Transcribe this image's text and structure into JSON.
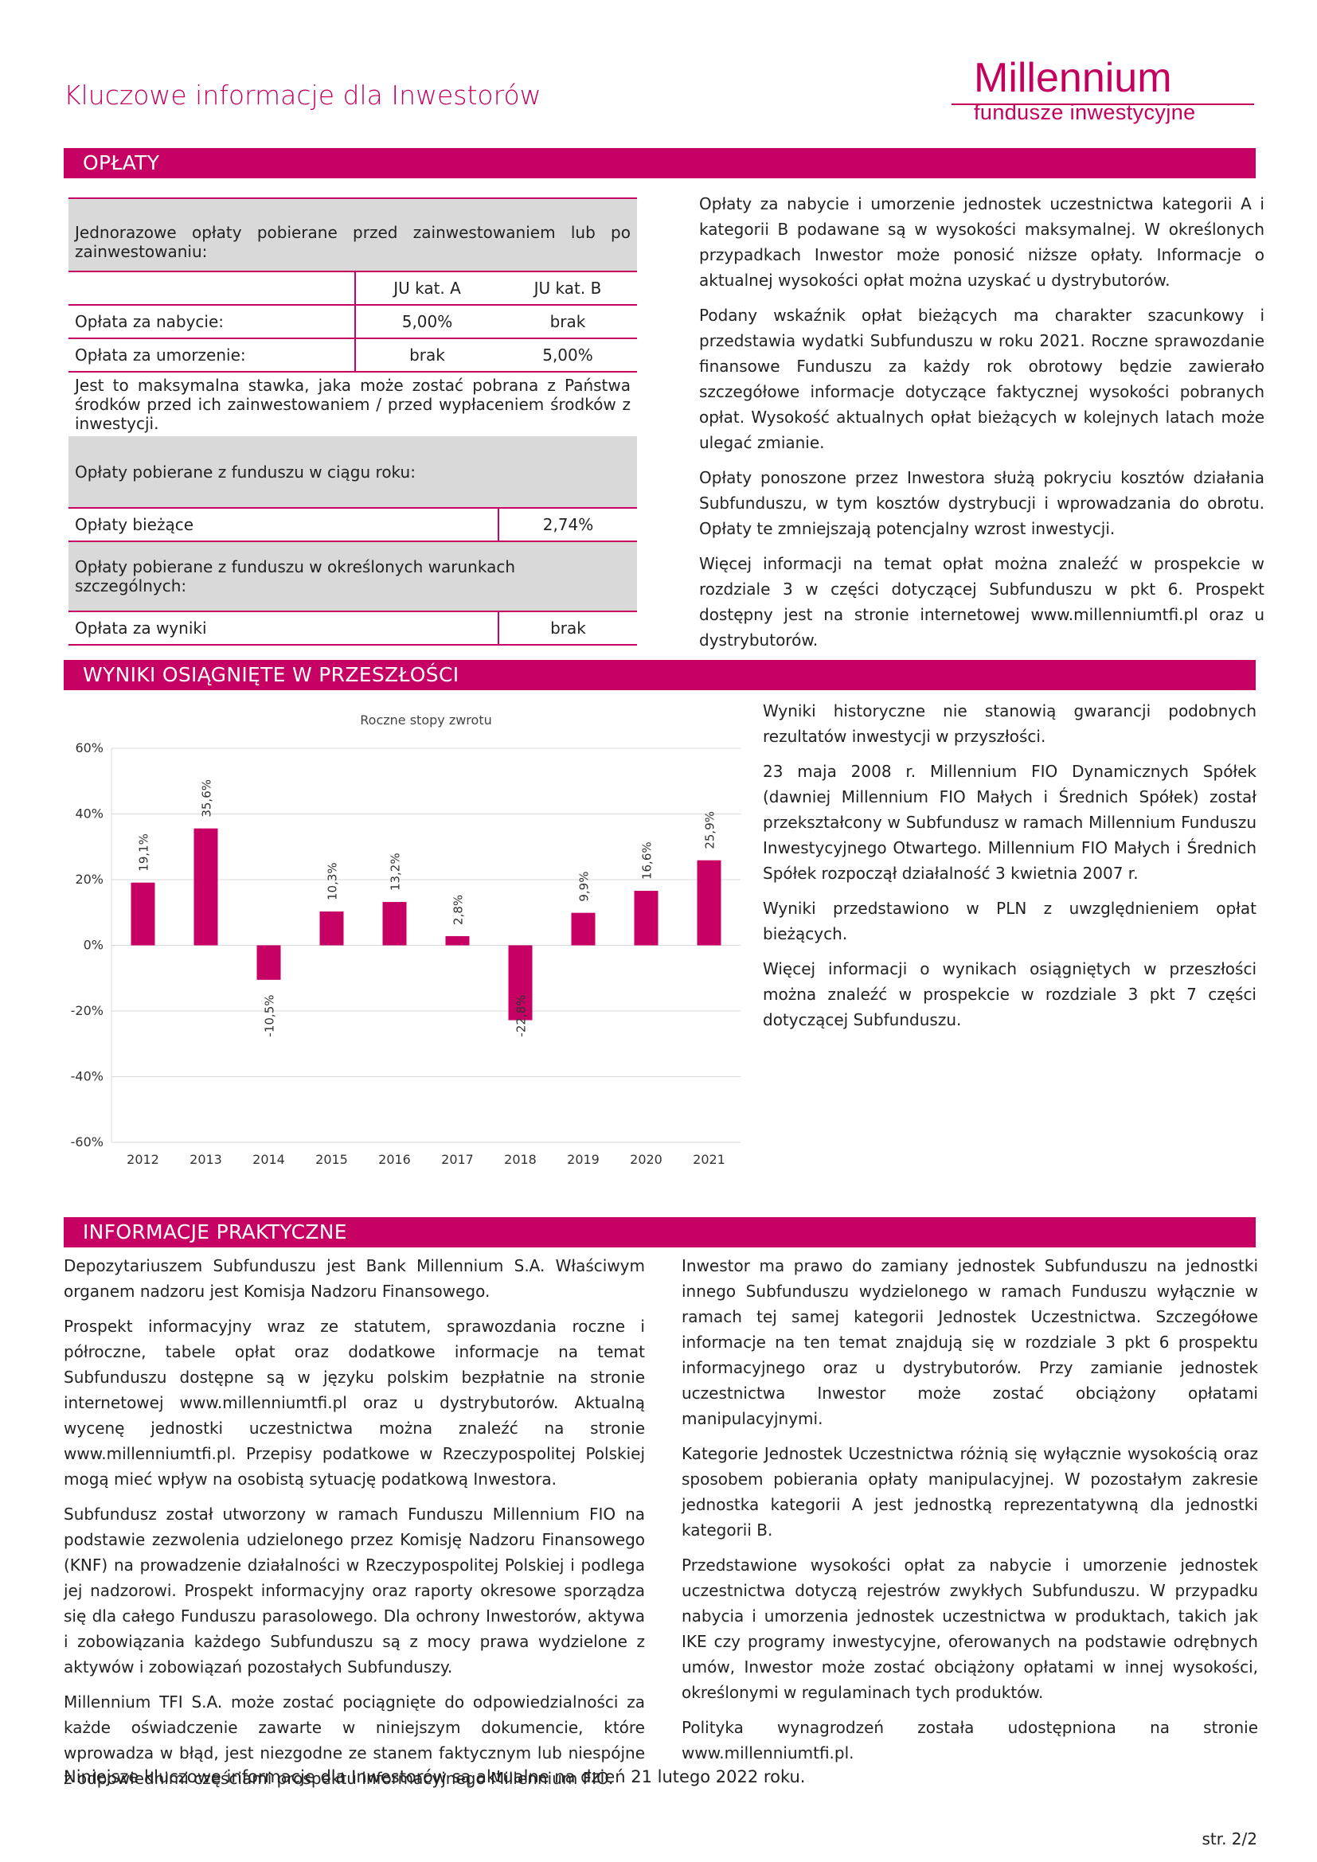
{
  "header": {
    "title": "Kluczowe informacje dla Inwestorów",
    "logo_name": "Millennium",
    "logo_sub": "fundusze inwestycyjne",
    "brand_color": "#c70063"
  },
  "fees": {
    "section_title": "OPŁATY",
    "one_off_heading": "Jednorazowe opłaty pobierane przed zainwestowaniem lub po zainwestowaniu:",
    "col_a": "JU kat. A",
    "col_b": "JU kat. B",
    "entry_label": "Opłata za nabycie:",
    "entry_a": "5,00%",
    "entry_b": "brak",
    "exit_label": "Opłata za umorzenie:",
    "exit_a": "brak",
    "exit_b": "5,00%",
    "max_note": "Jest to maksymalna stawka, jaka może zostać pobrana z Państwa środków przed ich zainwestowaniem / przed wypłaceniem środków z inwestycji.",
    "yearly_heading": "Opłaty pobierane z funduszu w ciągu roku:",
    "ongoing_label": "Opłaty bieżące",
    "ongoing_value": "2,74%",
    "special_heading": "Opłaty pobierane z funduszu w określonych warunkach szczególnych:",
    "perf_label": "Opłata za wyniki",
    "perf_value": "brak",
    "text": [
      "Opłaty za nabycie i umorzenie jednostek uczestnictwa kategorii A i kategorii B podawane są w wysokości maksymalnej. W określonych przypadkach Inwestor może ponosić niższe opłaty. Informacje o aktualnej wysokości opłat można uzyskać u dystrybutorów.",
      "Podany wskaźnik opłat bieżących ma charakter szacunkowy i przedstawia wydatki Subfunduszu w roku 2021. Roczne sprawozdanie finansowe Funduszu za każdy rok obrotowy będzie zawierało szczegółowe informacje dotyczące faktycznej wysokości pobranych opłat. Wysokość aktualnych opłat bieżących w kolejnych latach może ulegać zmianie.",
      "Opłaty ponoszone przez Inwestora służą pokryciu kosztów działania Subfunduszu, w tym kosztów dystrybucji i wprowadzania do obrotu. Opłaty te zmniejszają potencjalny wzrost inwestycji.",
      "Więcej informacji na temat opłat można znaleźć w prospekcie w rozdziale 3 w części dotyczącej Subfunduszu w pkt 6. Prospekt dostępny jest na stronie internetowej www.millenniumtfi.pl oraz u dystrybutorów."
    ]
  },
  "performance": {
    "section_title": "WYNIKI OSIĄGNIĘTE W PRZESZŁOŚCI",
    "text": [
      "Wyniki historyczne nie stanowią gwarancji podobnych rezultatów inwestycji w przyszłości.",
      "23 maja 2008 r. Millennium FIO Dynamicznych Spółek (dawniej Millennium FIO Małych i Średnich Spółek) został przekształcony w Subfundusz w ramach Millennium Funduszu Inwestycyjnego Otwartego. Millennium FIO Małych i Średnich Spółek rozpoczął działalność 3 kwietnia 2007 r.",
      "Wyniki przedstawiono w PLN z uwzględnieniem opłat bieżących.",
      "Więcej informacji o wynikach osiągniętych w przeszłości można znaleźć w prospekcie w rozdziale 3 pkt 7 części dotyczącej Subfunduszu."
    ]
  },
  "chart_data": {
    "type": "bar",
    "title": "Roczne stopy zwrotu",
    "categories": [
      "2012",
      "2013",
      "2014",
      "2015",
      "2016",
      "2017",
      "2018",
      "2019",
      "2020",
      "2021"
    ],
    "values": [
      19.1,
      35.6,
      -10.5,
      10.3,
      13.2,
      2.8,
      -22.8,
      9.9,
      16.6,
      25.9
    ],
    "value_labels": [
      "19,1%",
      "35,6%",
      "-10,5%",
      "10,3%",
      "13,2%",
      "2,8%",
      "-22,8%",
      "9,9%",
      "16,6%",
      "25,9%"
    ],
    "ylim": [
      -60,
      60
    ],
    "yticks": [
      60,
      40,
      20,
      0,
      -20,
      -40,
      -60
    ],
    "ytick_labels": [
      "60%",
      "40%",
      "20%",
      "0%",
      "-20%",
      "-40%",
      "-60%"
    ],
    "bar_color": "#c70063",
    "grid": true
  },
  "practical": {
    "section_title": "INFORMACJE PRAKTYCZNE",
    "left": [
      "Depozytariuszem Subfunduszu jest Bank Millennium S.A. Właściwym organem nadzoru jest Komisja Nadzoru Finansowego.",
      "Prospekt informacyjny wraz ze statutem, sprawozdania roczne i półroczne, tabele opłat oraz dodatkowe informacje na temat Subfunduszu dostępne są w języku polskim bezpłatnie na stronie internetowej www.millenniumtfi.pl oraz u dystrybutorów. Aktualną wycenę jednostki uczestnictwa można znaleźć na stronie www.millenniumtfi.pl. Przepisy podatkowe w Rzeczypospolitej Polskiej mogą mieć wpływ na osobistą sytuację podatkową Inwestora.",
      "Subfundusz został utworzony w ramach Funduszu Millennium FIO na podstawie zezwolenia udzielonego przez Komisję Nadzoru Finansowego (KNF) na prowadzenie działalności w Rzeczypospolitej Polskiej i podlega jej nadzorowi. Prospekt informacyjny oraz raporty okresowe sporządza się dla całego Funduszu parasolowego. Dla ochrony Inwestorów, aktywa i zobowiązania każdego Subfunduszu są z mocy prawa wydzielone z aktywów i zobowiązań pozostałych Subfunduszy.",
      "Millennium TFI S.A. może zostać pociągnięte do odpowiedzialności za każde oświadczenie zawarte w niniejszym dokumencie, które wprowadza w błąd, jest niezgodne ze stanem faktycznym lub niespójne z odpowiednimi częściami prospektu informacyjnego Millennium FIO."
    ],
    "right": [
      "Inwestor ma prawo do zamiany jednostek Subfunduszu na jednostki innego Subfunduszu wydzielonego w ramach Funduszu wyłącznie w ramach tej samej kategorii Jednostek Uczestnictwa. Szczegółowe informacje na ten temat znajdują się w rozdziale 3 pkt 6 prospektu informacyjnego oraz u dystrybutorów. Przy zamianie jednostek uczestnictwa Inwestor może zostać obciążony opłatami manipulacyjnymi.",
      "Kategorie Jednostek Uczestnictwa różnią się wyłącznie wysokością oraz sposobem pobierania opłaty manipulacyjnej. W pozostałym zakresie jednostka kategorii A jest jednostką reprezentatywną dla jednostki kategorii B.",
      "Przedstawione wysokości opłat za nabycie i umorzenie jednostek uczestnictwa dotyczą rejestrów zwykłych Subfunduszu. W przypadku nabycia i umorzenia jednostek uczestnictwa w produktach, takich jak IKE czy programy inwestycyjne, oferowanych na podstawie odrębnych umów, Inwestor może zostać obciążony opłatami w innej wysokości, określonymi w regulaminach tych produktów.",
      "Polityka wynagrodzeń została udostępniona na stronie www.millenniumtfi.pl."
    ]
  },
  "footer": {
    "note": "Niniejsze kluczowe informacje dla Inwestorów są aktualne na dzień 21 lutego 2022 roku.",
    "page": "str. 2/2"
  }
}
